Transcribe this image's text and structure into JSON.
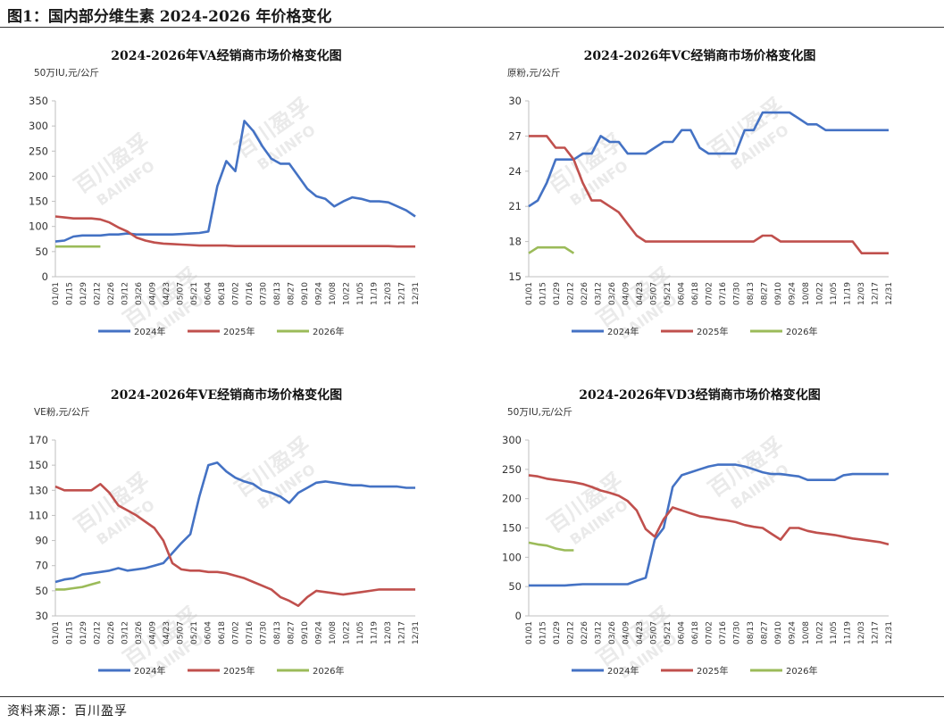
{
  "figure": {
    "title": "图1：国内部分维生素 2024-2026 年价格变化",
    "source": "资料来源：百川盈孚",
    "watermark": [
      "百川盈孚",
      "BAIINFO"
    ]
  },
  "colors": {
    "2024年": "#4472C4",
    "2025年": "#C0504D",
    "2026年": "#9BBB59"
  },
  "chart_data": [
    {
      "type": "line",
      "title": "2024-2026年VA经销商市场价格变化图",
      "ylabel": "50万IU,元/公斤",
      "ylim": [
        0,
        350
      ],
      "yticks": [
        0,
        50,
        100,
        150,
        200,
        250,
        300,
        350
      ],
      "xticks": [
        "01/01",
        "01/15",
        "01/29",
        "02/12",
        "02/26",
        "03/12",
        "03/26",
        "04/09",
        "04/23",
        "05/07",
        "05/21",
        "06/04",
        "06/18",
        "07/02",
        "07/16",
        "07/30",
        "08/13",
        "08/27",
        "09/10",
        "09/24",
        "10/08",
        "10/22",
        "11/05",
        "11/19",
        "12/03",
        "12/17",
        "12/31"
      ],
      "x": [
        "01/01",
        "01/08",
        "01/15",
        "01/22",
        "01/29",
        "02/12",
        "02/26",
        "03/12",
        "03/26",
        "04/09",
        "04/23",
        "05/07",
        "05/21",
        "06/04",
        "06/18",
        "07/02",
        "07/16",
        "07/23",
        "07/30",
        "08/06",
        "08/13",
        "08/20",
        "08/27",
        "09/03",
        "09/10",
        "09/17",
        "09/24",
        "10/01",
        "10/08",
        "10/15",
        "10/22",
        "10/29",
        "11/05",
        "11/12",
        "11/19",
        "11/26",
        "12/03",
        "12/10",
        "12/17",
        "12/24",
        "12/31"
      ],
      "series": [
        {
          "name": "2024年",
          "values": [
            70,
            72,
            80,
            82,
            82,
            82,
            84,
            84,
            86,
            84,
            84,
            84,
            84,
            84,
            85,
            86,
            87,
            90,
            180,
            230,
            210,
            310,
            290,
            260,
            235,
            225,
            225,
            200,
            175,
            160,
            155,
            140,
            150,
            158,
            155,
            150,
            150,
            148,
            140,
            132,
            120
          ]
        },
        {
          "name": "2025年",
          "values": [
            120,
            118,
            116,
            116,
            116,
            114,
            108,
            98,
            90,
            78,
            72,
            68,
            66,
            65,
            64,
            63,
            62,
            62,
            62,
            62,
            61,
            61,
            61,
            61,
            61,
            61,
            61,
            61,
            61,
            61,
            61,
            61,
            61,
            61,
            61,
            61,
            61,
            61,
            60,
            60,
            60
          ]
        },
        {
          "name": "2026年",
          "values": [
            60,
            60,
            60,
            60,
            60,
            60,
            null,
            null,
            null,
            null,
            null,
            null,
            null,
            null,
            null,
            null,
            null,
            null,
            null,
            null,
            null,
            null,
            null,
            null,
            null,
            null,
            null,
            null,
            null,
            null,
            null,
            null,
            null,
            null,
            null,
            null,
            null,
            null,
            null,
            null,
            null
          ]
        }
      ],
      "legend": "bottom"
    },
    {
      "type": "line",
      "title": "2024-2026年VC经销商市场价格变化图",
      "ylabel": "原粉,元/公斤",
      "ylim": [
        15,
        30
      ],
      "yticks": [
        15,
        18,
        21,
        24,
        27,
        30
      ],
      "xticks": [
        "01/01",
        "01/15",
        "01/29",
        "02/12",
        "02/26",
        "03/12",
        "03/26",
        "04/09",
        "04/23",
        "05/07",
        "05/21",
        "06/04",
        "06/18",
        "07/02",
        "07/16",
        "07/30",
        "08/13",
        "08/27",
        "09/10",
        "09/24",
        "10/08",
        "10/22",
        "11/05",
        "11/19",
        "12/03",
        "12/17",
        "12/31"
      ],
      "x": [
        "01/01",
        "01/08",
        "01/15",
        "01/22",
        "01/29",
        "02/12",
        "02/26",
        "03/12",
        "03/26",
        "04/09",
        "04/23",
        "05/07",
        "05/21",
        "06/04",
        "06/18",
        "07/02",
        "07/16",
        "07/23",
        "07/30",
        "08/06",
        "08/13",
        "08/20",
        "08/27",
        "09/03",
        "09/10",
        "09/17",
        "09/24",
        "10/01",
        "10/08",
        "10/15",
        "10/22",
        "10/29",
        "11/05",
        "11/12",
        "11/19",
        "11/26",
        "12/03",
        "12/10",
        "12/17",
        "12/24",
        "12/31"
      ],
      "series": [
        {
          "name": "2024年",
          "values": [
            21,
            21.5,
            23,
            25,
            25,
            25,
            25.5,
            25.5,
            27,
            26.5,
            26.5,
            25.5,
            25.5,
            25.5,
            26,
            26.5,
            26.5,
            27.5,
            27.5,
            26,
            25.5,
            25.5,
            25.5,
            25.5,
            27.5,
            27.5,
            29,
            29,
            29,
            29,
            28.5,
            28,
            28,
            27.5,
            27.5,
            27.5,
            27.5,
            27.5,
            27.5,
            27.5,
            27.5
          ]
        },
        {
          "name": "2025年",
          "values": [
            27,
            27,
            27,
            26,
            26,
            25,
            23,
            21.5,
            21.5,
            21,
            20.5,
            19.5,
            18.5,
            18,
            18,
            18,
            18,
            18,
            18,
            18,
            18,
            18,
            18,
            18,
            18,
            18,
            18.5,
            18.5,
            18,
            18,
            18,
            18,
            18,
            18,
            18,
            18,
            18,
            17,
            17,
            17,
            17
          ]
        },
        {
          "name": "2026年",
          "values": [
            17,
            17.5,
            17.5,
            17.5,
            17.5,
            17,
            null,
            null,
            null,
            null,
            null,
            null,
            null,
            null,
            null,
            null,
            null,
            null,
            null,
            null,
            null,
            null,
            null,
            null,
            null,
            null,
            null,
            null,
            null,
            null,
            null,
            null,
            null,
            null,
            null,
            null,
            null,
            null,
            null,
            null,
            null
          ]
        }
      ],
      "legend": "bottom"
    },
    {
      "type": "line",
      "title": "2024-2026年VE经销商市场价格变化图",
      "ylabel": "VE粉,元/公斤",
      "ylim": [
        30,
        170
      ],
      "yticks": [
        30,
        50,
        70,
        90,
        110,
        130,
        150,
        170
      ],
      "xticks": [
        "01/01",
        "01/15",
        "01/29",
        "02/12",
        "02/26",
        "03/12",
        "03/26",
        "04/09",
        "04/23",
        "05/07",
        "05/21",
        "06/04",
        "06/18",
        "07/02",
        "07/16",
        "07/30",
        "08/13",
        "08/27",
        "09/10",
        "09/24",
        "10/08",
        "10/22",
        "11/05",
        "11/19",
        "12/03",
        "12/17",
        "12/31"
      ],
      "x": [
        "01/01",
        "01/08",
        "01/15",
        "01/22",
        "01/29",
        "02/12",
        "02/26",
        "03/12",
        "03/26",
        "04/09",
        "04/23",
        "05/07",
        "05/21",
        "06/04",
        "06/18",
        "07/02",
        "07/16",
        "07/23",
        "07/30",
        "08/06",
        "08/13",
        "08/20",
        "08/27",
        "09/03",
        "09/10",
        "09/17",
        "09/24",
        "10/01",
        "10/08",
        "10/15",
        "10/22",
        "10/29",
        "11/05",
        "11/12",
        "11/19",
        "11/26",
        "12/03",
        "12/10",
        "12/17",
        "12/24",
        "12/31"
      ],
      "series": [
        {
          "name": "2024年",
          "values": [
            57,
            59,
            60,
            63,
            64,
            65,
            66,
            68,
            66,
            67,
            68,
            70,
            72,
            80,
            88,
            95,
            125,
            150,
            152,
            145,
            140,
            137,
            135,
            130,
            128,
            125,
            120,
            128,
            132,
            136,
            137,
            136,
            135,
            134,
            134,
            133,
            133,
            133,
            133,
            132,
            132
          ]
        },
        {
          "name": "2025年",
          "values": [
            133,
            130,
            130,
            130,
            130,
            135,
            128,
            118,
            114,
            110,
            105,
            100,
            90,
            72,
            67,
            66,
            66,
            65,
            65,
            64,
            62,
            60,
            57,
            54,
            51,
            45,
            42,
            38,
            45,
            50,
            49,
            48,
            47,
            48,
            49,
            50,
            51,
            51,
            51,
            51,
            51
          ]
        },
        {
          "name": "2026年",
          "values": [
            51,
            51,
            52,
            53,
            55,
            57,
            null,
            null,
            null,
            null,
            null,
            null,
            null,
            null,
            null,
            null,
            null,
            null,
            null,
            null,
            null,
            null,
            null,
            null,
            null,
            null,
            null,
            null,
            null,
            null,
            null,
            null,
            null,
            null,
            null,
            null,
            null,
            null,
            null,
            null,
            null
          ]
        }
      ],
      "legend": "bottom"
    },
    {
      "type": "line",
      "title": "2024-2026年VD3经销商市场价格变化图",
      "ylabel": "50万IU,元/公斤",
      "ylim": [
        0,
        300
      ],
      "yticks": [
        0,
        50,
        100,
        150,
        200,
        250,
        300
      ],
      "xticks": [
        "01/01",
        "01/15",
        "01/29",
        "02/12",
        "02/26",
        "03/12",
        "03/26",
        "04/09",
        "04/23",
        "05/07",
        "05/21",
        "06/04",
        "06/18",
        "07/02",
        "07/16",
        "07/30",
        "08/13",
        "08/27",
        "09/10",
        "09/24",
        "10/08",
        "10/22",
        "11/05",
        "11/19",
        "12/03",
        "12/17",
        "12/31"
      ],
      "x": [
        "01/01",
        "01/08",
        "01/15",
        "01/22",
        "01/29",
        "02/12",
        "02/26",
        "03/12",
        "03/26",
        "04/09",
        "04/23",
        "05/07",
        "05/21",
        "06/04",
        "06/18",
        "07/02",
        "07/16",
        "07/23",
        "07/30",
        "08/06",
        "08/13",
        "08/20",
        "08/27",
        "09/03",
        "09/10",
        "09/17",
        "09/24",
        "10/01",
        "10/08",
        "10/15",
        "10/22",
        "10/29",
        "11/05",
        "11/12",
        "11/19",
        "11/26",
        "12/03",
        "12/10",
        "12/17",
        "12/24",
        "12/31"
      ],
      "series": [
        {
          "name": "2024年",
          "values": [
            52,
            52,
            52,
            52,
            52,
            53,
            54,
            54,
            54,
            54,
            54,
            54,
            60,
            65,
            130,
            150,
            220,
            240,
            245,
            250,
            255,
            258,
            258,
            258,
            255,
            250,
            245,
            242,
            242,
            240,
            238,
            232,
            232,
            232,
            232,
            240,
            242,
            242,
            242,
            242,
            242
          ]
        },
        {
          "name": "2025年",
          "values": [
            240,
            238,
            234,
            232,
            230,
            228,
            225,
            220,
            214,
            210,
            205,
            196,
            180,
            148,
            135,
            165,
            185,
            180,
            175,
            170,
            168,
            165,
            163,
            160,
            155,
            152,
            150,
            140,
            130,
            150,
            150,
            145,
            142,
            140,
            138,
            135,
            132,
            130,
            128,
            126,
            122
          ]
        },
        {
          "name": "2026年",
          "values": [
            125,
            122,
            120,
            115,
            112,
            112,
            null,
            null,
            null,
            null,
            null,
            null,
            null,
            null,
            null,
            null,
            null,
            null,
            null,
            null,
            null,
            null,
            null,
            null,
            null,
            null,
            null,
            null,
            null,
            null,
            null,
            null,
            null,
            null,
            null,
            null,
            null,
            null,
            null,
            null,
            null
          ]
        }
      ],
      "legend": "bottom"
    }
  ]
}
